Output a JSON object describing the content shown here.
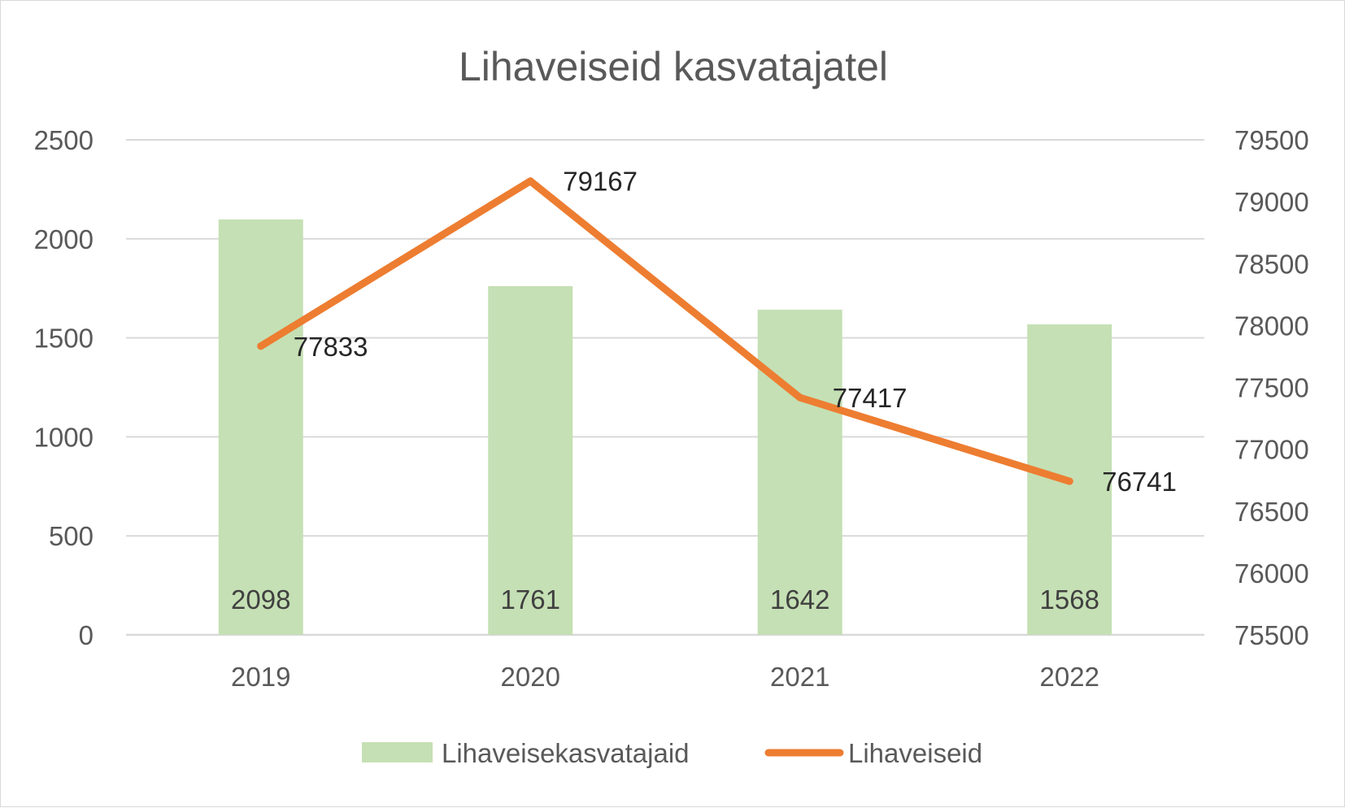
{
  "chart_data": {
    "type": "bar",
    "title": "Lihaveiseid kasvatajatel",
    "categories": [
      "2019",
      "2020",
      "2021",
      "2022"
    ],
    "series": [
      {
        "name": "Lihaveisekasvatajaid",
        "type": "bar",
        "axis": "left",
        "values": [
          2098,
          1761,
          1642,
          1568
        ],
        "color": "#c5e0b4"
      },
      {
        "name": "Lihaveiseid",
        "type": "line",
        "axis": "right",
        "values": [
          77833,
          79167,
          77417,
          76741
        ],
        "color": "#ed7d31"
      }
    ],
    "y_left": {
      "min": 0,
      "max": 2500,
      "ticks": [
        "0",
        "500",
        "1000",
        "1500",
        "2000",
        "2500"
      ]
    },
    "y_right": {
      "min": 75500,
      "max": 79500,
      "ticks": [
        "75500",
        "76000",
        "76500",
        "77000",
        "77500",
        "78000",
        "78500",
        "79000",
        "79500"
      ]
    },
    "grid": true,
    "legend_position": "bottom",
    "gridline_color": "#d9d9d9"
  }
}
